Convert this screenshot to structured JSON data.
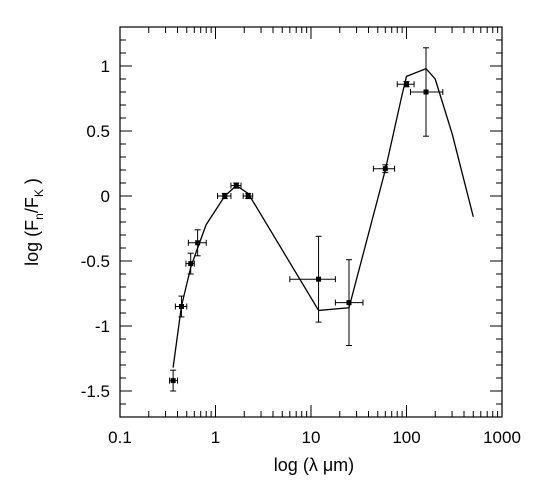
{
  "chart_data": {
    "type": "scatter",
    "title": "",
    "xlabel": "log    (λ  μm)",
    "ylabel": "log  (F_n/F_K  )",
    "x_scale": "log",
    "xlim": [
      0.1,
      1000
    ],
    "ylim": [
      -1.7,
      1.3
    ],
    "grid": false,
    "x_ticks": [
      0.1,
      1,
      10,
      100,
      1000
    ],
    "x_tick_labels": [
      "0.1",
      "1",
      "10",
      "100",
      "1000"
    ],
    "y_ticks": [
      1,
      0.5,
      0,
      -0.5,
      -1,
      -1.5
    ],
    "y_tick_labels": [
      "1",
      "0.5",
      "0",
      "-0.5",
      "-1",
      "-1.5"
    ],
    "model_curve": {
      "x": [
        0.36,
        0.44,
        0.55,
        0.65,
        0.8,
        1.25,
        1.65,
        2.2,
        12,
        25,
        60,
        90,
        100,
        160,
        200,
        300,
        500
      ],
      "y": [
        -1.32,
        -0.85,
        -0.55,
        -0.4,
        -0.22,
        0.0,
        0.08,
        0.02,
        -0.88,
        -0.86,
        0.2,
        0.78,
        0.92,
        0.98,
        0.9,
        0.48,
        -0.16
      ]
    },
    "points": [
      {
        "x": 0.36,
        "y": -1.42,
        "x_lo": 0.33,
        "x_hi": 0.4,
        "y_err": 0.08
      },
      {
        "x": 0.44,
        "y": -0.85,
        "x_lo": 0.38,
        "x_hi": 0.5,
        "y_err": 0.08
      },
      {
        "x": 0.55,
        "y": -0.52,
        "x_lo": 0.49,
        "x_hi": 0.6,
        "y_err": 0.08
      },
      {
        "x": 0.65,
        "y": -0.36,
        "x_lo": 0.52,
        "x_hi": 0.8,
        "y_err": 0.1
      },
      {
        "x": 1.25,
        "y": 0.0,
        "x_lo": 1.05,
        "x_hi": 1.45,
        "y_err": 0.02
      },
      {
        "x": 1.65,
        "y": 0.08,
        "x_lo": 1.45,
        "x_hi": 1.85,
        "y_err": 0.02
      },
      {
        "x": 2.2,
        "y": 0.0,
        "x_lo": 1.95,
        "x_hi": 2.45,
        "y_err": 0.02
      },
      {
        "x": 12,
        "y": -0.64,
        "x_lo": 6,
        "x_hi": 18,
        "y_err": 0.33
      },
      {
        "x": 25,
        "y": -0.82,
        "x_lo": 18,
        "x_hi": 35,
        "y_err": 0.33
      },
      {
        "x": 60,
        "y": 0.21,
        "x_lo": 45,
        "x_hi": 75,
        "y_err": 0.03
      },
      {
        "x": 100,
        "y": 0.86,
        "x_lo": 80,
        "x_hi": 120,
        "y_err": 0.02
      },
      {
        "x": 160,
        "y": 0.8,
        "x_lo": 110,
        "x_hi": 240,
        "y_err": 0.34
      }
    ]
  }
}
